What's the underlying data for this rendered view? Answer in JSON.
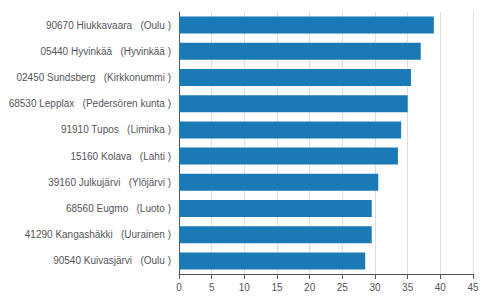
{
  "chart_data": {
    "type": "bar",
    "orientation": "horizontal",
    "categories": [
      "90540 Kuivasjärvi   (Oulu )",
      "41290 Kangashäkki   (Uurainen )",
      "68560 Eugmo   (Luoto )",
      "39160 Julkujärvi   (Ylöjärvi )",
      "15160 Kolava   (Lahti )",
      "91910 Tupos   (Liminka )",
      "68530 Lepplax   (Pedersören kunta )",
      "02450 Sundsberg   (Kirkkonummi )",
      "05440 Hyvinkää   (Hyvinkää )",
      "90670 Hiukkavaara   (Oulu )"
    ],
    "values": [
      28.5,
      29.5,
      29.5,
      30.5,
      33.5,
      34.0,
      35.0,
      35.5,
      37.0,
      39.0
    ],
    "color": "#1a7ab5",
    "xlim": [
      0,
      45
    ],
    "xticks": [
      0,
      5,
      10,
      15,
      20,
      25,
      30,
      35,
      40,
      45
    ],
    "grid": true
  }
}
